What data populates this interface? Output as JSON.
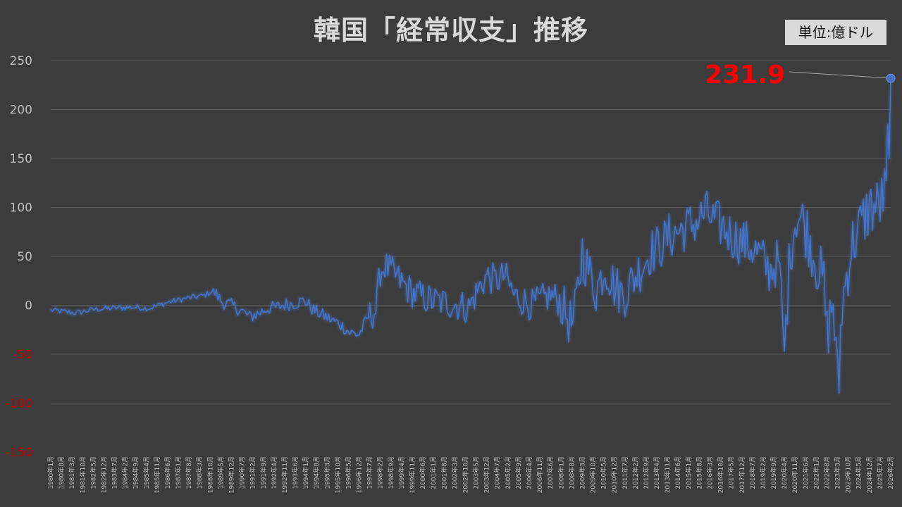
{
  "title": "韓国「経常収支」推移",
  "unit": "単位:億ドル",
  "colors": {
    "background": "#3c3c3c",
    "line": "#4472c4",
    "negative_tick": "#c00000",
    "positive_tick": "#bfbfbf",
    "callout": "#ff0000"
  },
  "chart_data": {
    "type": "line",
    "title": "韓国「経常収支」推移",
    "ylabel": "単位:億ドル",
    "ylim": [
      -150,
      250
    ],
    "yticks": [
      250,
      200,
      150,
      100,
      50,
      0,
      -50,
      -100,
      -150
    ],
    "grid": true,
    "x_start": "1980年1月",
    "x_end": "2026年2月",
    "xtick_labels": [
      "1980年1月",
      "1980年8月",
      "1981年3月",
      "1981年10月",
      "1982年5月",
      "1982年12月",
      "1983年7月",
      "1984年2月",
      "1984年9月",
      "1985年4月",
      "1985年11月",
      "1986年6月",
      "1987年1月",
      "1987年8月",
      "1988年3月",
      "1988年10月",
      "1989年5月",
      "1989年12月",
      "1990年7月",
      "1991年2月",
      "1991年9月",
      "1992年4月",
      "1992年11月",
      "1993年6月",
      "1994年1月",
      "1994年8月",
      "1995年3月",
      "1995年10月",
      "1996年5月",
      "1996年12月",
      "1997年7月",
      "1998年2月",
      "1998年9月",
      "1999年4月",
      "1999年11月",
      "2000年6月",
      "2001年1月",
      "2001年8月",
      "2002年3月",
      "2002年10月",
      "2003年5月",
      "2003年12月",
      "2004年7月",
      "2005年2月",
      "2005年9月",
      "2006年4月",
      "2006年11月",
      "2007年6月",
      "2008年1月",
      "2008年8月",
      "2009年3月",
      "2009年10月",
      "2010年5月",
      "2010年12月",
      "2011年7月",
      "2012年2月",
      "2012年9月",
      "2013年4月",
      "2013年11月",
      "2014年6月",
      "2015年1月",
      "2015年8月",
      "2016年3月",
      "2016年10月",
      "2017年5月",
      "2017年12月",
      "2018年7月",
      "2019年2月",
      "2019年9月",
      "2020年4月",
      "2020年11月",
      "2021年6月",
      "2022年1月",
      "2022年8月",
      "2023年3月",
      "2023年10月",
      "2024年5月",
      "2024年12月",
      "2025年7月",
      "2026年2月"
    ],
    "series": [
      {
        "anchors": [
          [
            "1980-01",
            -5
          ],
          [
            "1981-06",
            -8
          ],
          [
            "1982-06",
            -4
          ],
          [
            "1983-06",
            -3
          ],
          [
            "1984-06",
            -2
          ],
          [
            "1985-06",
            -3
          ],
          [
            "1986-06",
            3
          ],
          [
            "1987-06",
            7
          ],
          [
            "1988-06",
            10
          ],
          [
            "1988-12",
            15
          ],
          [
            "1989-06",
            3
          ],
          [
            "1989-12",
            0
          ],
          [
            "1990-06",
            -5
          ],
          [
            "1990-12",
            -12
          ],
          [
            "1991-06",
            -8
          ],
          [
            "1991-12",
            -3
          ],
          [
            "1992-06",
            -2
          ],
          [
            "1992-12",
            1
          ],
          [
            "1993-06",
            2
          ],
          [
            "1993-12",
            5
          ],
          [
            "1994-06",
            -5
          ],
          [
            "1994-12",
            -10
          ],
          [
            "1995-06",
            -15
          ],
          [
            "1995-12",
            -20
          ],
          [
            "1996-06",
            -28
          ],
          [
            "1996-12",
            -30
          ],
          [
            "1997-06",
            -12
          ],
          [
            "1997-11",
            -5
          ],
          [
            "1998-02",
            35
          ],
          [
            "1998-05",
            40
          ],
          [
            "1998-12",
            30
          ],
          [
            "1999-06",
            20
          ],
          [
            "1999-12",
            12
          ],
          [
            "2000-06",
            8
          ],
          [
            "2000-12",
            5
          ],
          [
            "2001-06",
            3
          ],
          [
            "2001-12",
            2
          ],
          [
            "2002-06",
            0
          ],
          [
            "2002-12",
            -3
          ],
          [
            "2003-06",
            15
          ],
          [
            "2003-12",
            30
          ],
          [
            "2004-06",
            25
          ],
          [
            "2004-12",
            30
          ],
          [
            "2005-06",
            10
          ],
          [
            "2005-12",
            5
          ],
          [
            "2006-06",
            0
          ],
          [
            "2006-12",
            5
          ],
          [
            "2007-06",
            10
          ],
          [
            "2007-12",
            5
          ],
          [
            "2008-06",
            -15
          ],
          [
            "2008-09",
            -20
          ],
          [
            "2009-03",
            50
          ],
          [
            "2009-06",
            40
          ],
          [
            "2009-12",
            15
          ],
          [
            "2010-06",
            40
          ],
          [
            "2010-12",
            20
          ],
          [
            "2011-06",
            10
          ],
          [
            "2011-12",
            25
          ],
          [
            "2012-06",
            40
          ],
          [
            "2012-12",
            55
          ],
          [
            "2013-06",
            60
          ],
          [
            "2013-12",
            70
          ],
          [
            "2014-06",
            75
          ],
          [
            "2014-12",
            80
          ],
          [
            "2015-06",
            85
          ],
          [
            "2015-12",
            95
          ],
          [
            "2016-06",
            85
          ],
          [
            "2016-12",
            80
          ],
          [
            "2017-06",
            70
          ],
          [
            "2017-12",
            65
          ],
          [
            "2018-06",
            60
          ],
          [
            "2018-12",
            50
          ],
          [
            "2019-06",
            35
          ],
          [
            "2019-12",
            45
          ],
          [
            "2020-04",
            -40
          ],
          [
            "2020-08",
            60
          ],
          [
            "2020-12",
            95
          ],
          [
            "2021-06",
            80
          ],
          [
            "2021-12",
            50
          ],
          [
            "2022-06",
            20
          ],
          [
            "2022-08",
            -30
          ],
          [
            "2022-12",
            5
          ],
          [
            "2023-03",
            -80
          ],
          [
            "2023-06",
            0
          ],
          [
            "2023-12",
            60
          ],
          [
            "2024-06",
            80
          ],
          [
            "2024-12",
            100
          ],
          [
            "2025-06",
            100
          ],
          [
            "2025-12",
            120
          ],
          [
            "2026-01",
            150
          ],
          [
            "2026-02",
            231.9
          ]
        ]
      }
    ],
    "annotation": {
      "label": "231.9",
      "x": "2026年2月",
      "y": 231.9
    }
  }
}
